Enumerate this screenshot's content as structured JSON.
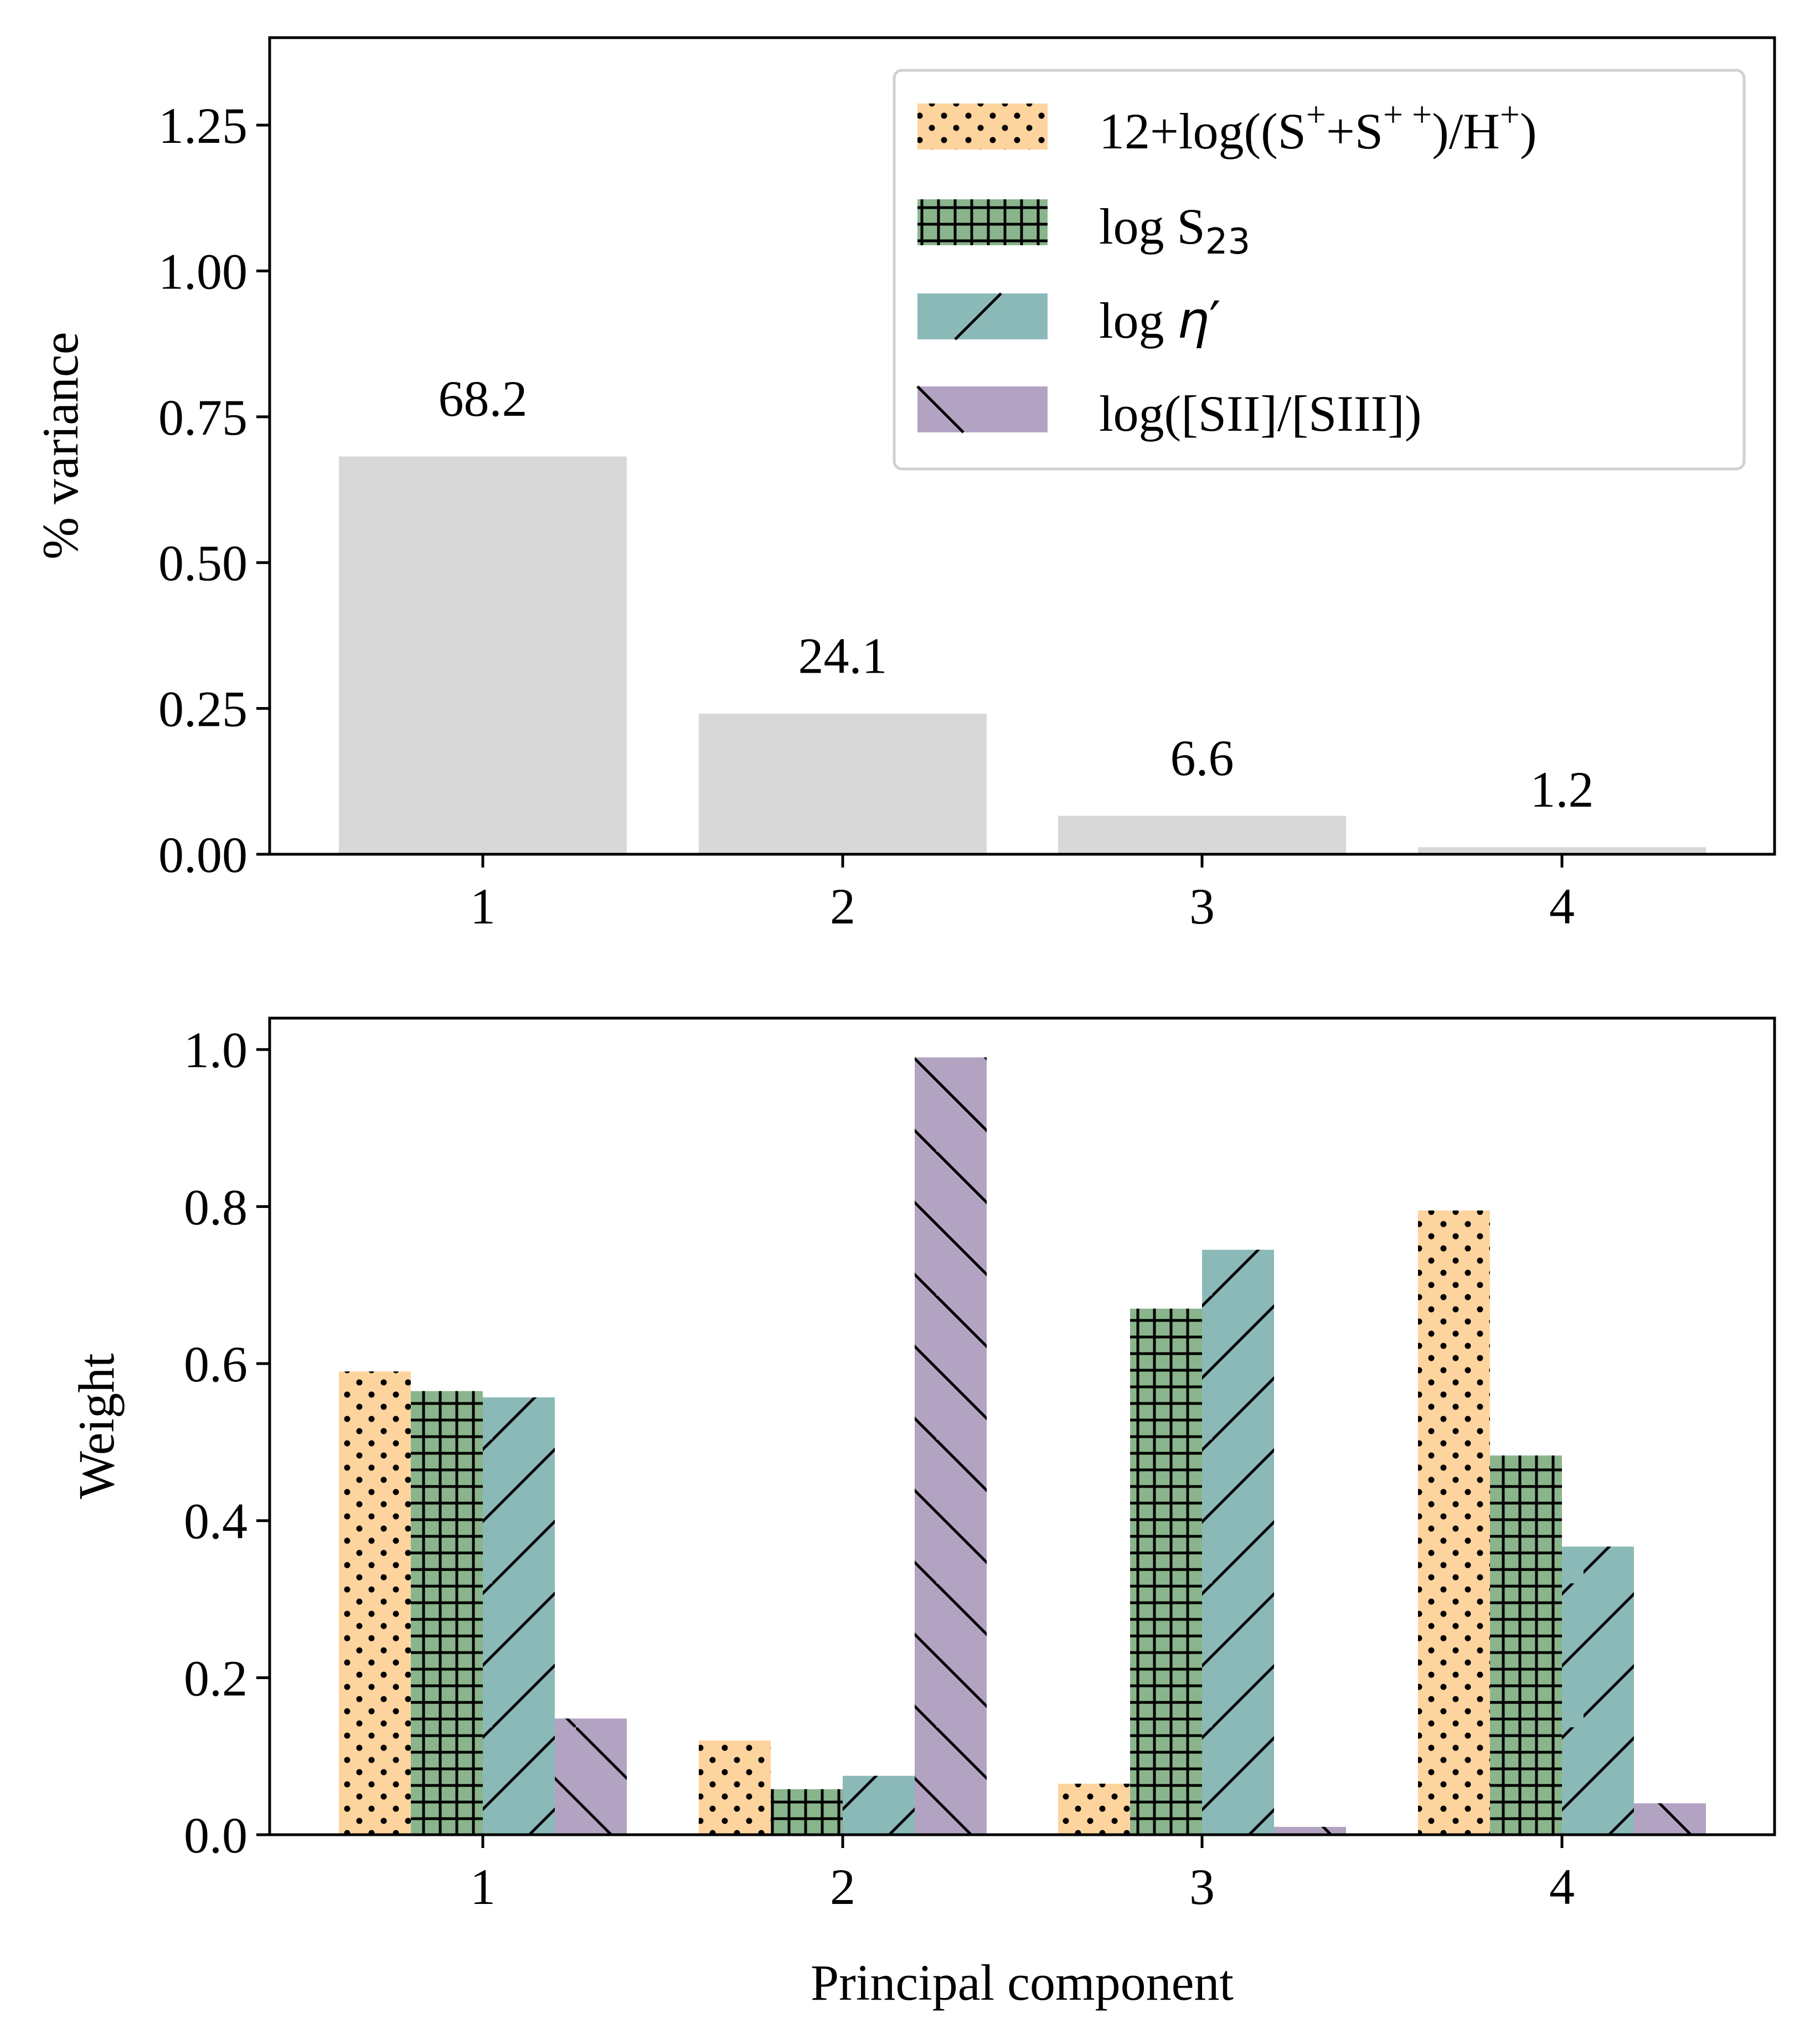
{
  "chart_data": [
    {
      "type": "bar",
      "name": "variance",
      "categories": [
        "1",
        "2",
        "3",
        "4"
      ],
      "values": [
        0.682,
        0.241,
        0.066,
        0.012
      ],
      "bar_labels": [
        "68.2",
        "24.1",
        "6.6",
        "1.2"
      ],
      "bar_color": "#d8d8d8",
      "xlabel": "",
      "ylabel": "% variance",
      "ylim": [
        0,
        1.4
      ],
      "yticks": [
        0.0,
        0.25,
        0.5,
        0.75,
        1.0,
        1.25
      ],
      "ytick_labels": [
        "0.00",
        "0.25",
        "0.50",
        "0.75",
        "1.00",
        "1.25"
      ],
      "legend": {
        "placement": "top-right",
        "entries": [
          {
            "label_main": "12+log((S",
            "sup1": "+",
            "mid": "+S",
            "sup2": "+ +",
            "mid2": ")/H",
            "sup3": "+",
            "end": ")",
            "color": "#fdd49e",
            "hatch": "dots"
          },
          {
            "label_main": "log S",
            "sub": "23",
            "color": "#8ab58c",
            "hatch": "grid"
          },
          {
            "label_main": "log ",
            "italic": "η",
            "prime": "′",
            "color": "#8bb9b8",
            "hatch": "slash"
          },
          {
            "label_main": "log([SII]/[SIII])",
            "color": "#b3a3c3",
            "hatch": "backslash"
          }
        ]
      }
    },
    {
      "type": "bar",
      "name": "weights",
      "categories": [
        "1",
        "2",
        "3",
        "4"
      ],
      "series": [
        {
          "name": "12+log((S++S++)/H+)",
          "values": [
            0.59,
            0.12,
            0.065,
            0.795
          ],
          "color": "#fdd49e",
          "hatch": "dots"
        },
        {
          "name": "log S23",
          "values": [
            0.565,
            0.058,
            0.67,
            0.483
          ],
          "color": "#8ab58c",
          "hatch": "grid"
        },
        {
          "name": "log eta'",
          "values": [
            0.557,
            0.075,
            0.745,
            0.367
          ],
          "color": "#8bb9b8",
          "hatch": "slash"
        },
        {
          "name": "log([SII]/[SIII])",
          "values": [
            0.148,
            0.99,
            0.01,
            0.04
          ],
          "color": "#b3a3c3",
          "hatch": "backslash"
        }
      ],
      "xlabel": "Principal component",
      "ylabel": "Weight",
      "ylim": [
        0,
        1.04
      ],
      "yticks": [
        0.0,
        0.2,
        0.4,
        0.6,
        0.8,
        1.0
      ],
      "ytick_labels": [
        "0.0",
        "0.2",
        "0.4",
        "0.6",
        "0.8",
        "1.0"
      ]
    }
  ]
}
